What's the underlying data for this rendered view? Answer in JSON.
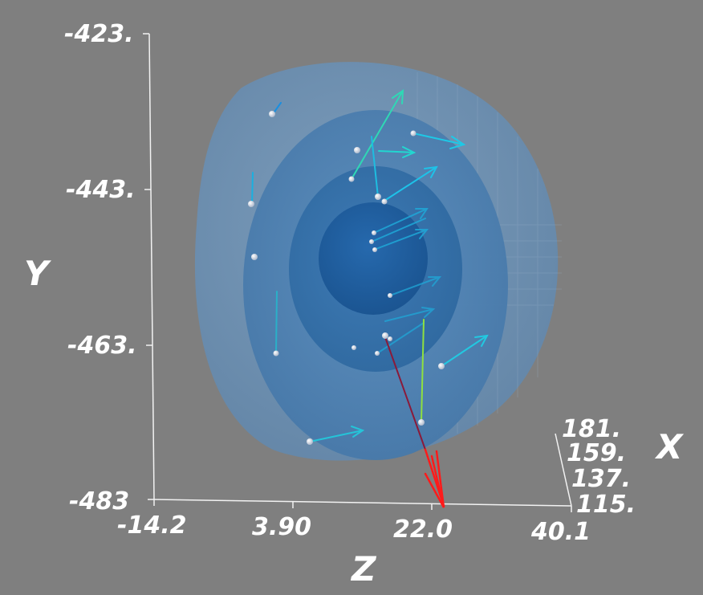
{
  "window": {
    "background": "#7f7f7f"
  },
  "chart_data": {
    "type": "3d-vector-field",
    "axes": {
      "x": {
        "label": "X",
        "ticks": [
          "181.",
          "159.",
          "137.",
          "115."
        ],
        "range": [
          115,
          181
        ]
      },
      "y": {
        "label": "Y",
        "ticks": [
          "-423.",
          "-443.",
          "-463.",
          "-483"
        ],
        "range": [
          -483,
          -423
        ]
      },
      "z": {
        "label": "Z",
        "ticks": [
          "-14.2",
          "3.90",
          "22.0",
          "40.1"
        ],
        "range": [
          -14.2,
          40.1
        ]
      }
    },
    "isosurfaces": {
      "count": 4,
      "colors": [
        "#6f93b5",
        "#4f84b8",
        "#3a76b2",
        "#1f5f9f"
      ]
    },
    "vector_colors": [
      "#00ccff",
      "#33ffcc",
      "#99ff33",
      "#ff0000"
    ]
  }
}
